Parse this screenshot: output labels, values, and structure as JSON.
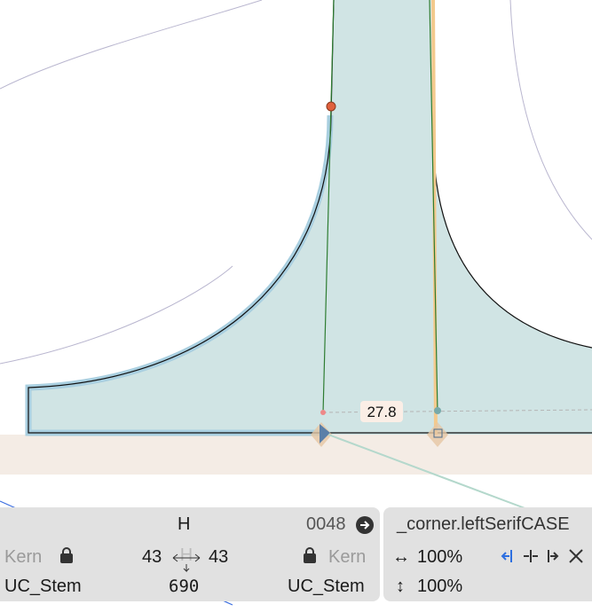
{
  "canvas": {
    "measurement": "27.8"
  },
  "info_panel": {
    "glyph_name": "H",
    "unicode": "0048",
    "left_kern": "Kern",
    "left_sidebearing": "43",
    "right_sidebearing": "43",
    "right_kern": "Kern",
    "left_metrics_key": "UC_Stem",
    "width": "690",
    "right_metrics_key": "UC_Stem"
  },
  "component_panel": {
    "component_name": "_corner.leftSerifCASE",
    "scale_x": "100%",
    "scale_y": "100%"
  }
}
